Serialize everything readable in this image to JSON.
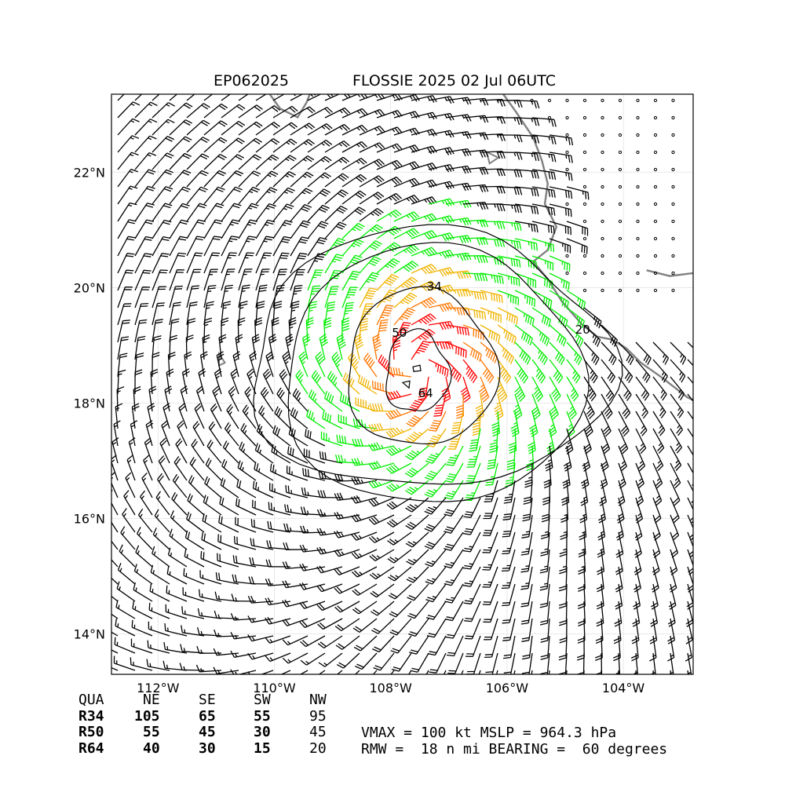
{
  "header": {
    "storm_id": "EP062025",
    "storm_title": "FLOSSIE 2025 02 Jul 06UTC"
  },
  "chart_data": {
    "type": "wind_barb_map",
    "title_left": "EP062025",
    "title_right": "FLOSSIE 2025 02 Jul 06UTC",
    "x_ticks": [
      "112°W",
      "110°W",
      "108°W",
      "106°W",
      "104°W"
    ],
    "x_tick_values": [
      -112,
      -110,
      -108,
      -106,
      -104
    ],
    "y_ticks": [
      "14°N",
      "16°N",
      "18°N",
      "20°N",
      "22°N"
    ],
    "y_tick_values": [
      14,
      16,
      18,
      20,
      22
    ],
    "xlim": [
      -112.8,
      -102.8
    ],
    "ylim": [
      13.3,
      23.35
    ],
    "grid": true,
    "center": {
      "lon": -107.55,
      "lat": 18.6
    },
    "contours": [
      {
        "label": "20",
        "label_lon": -104.7,
        "label_lat": 19.2
      },
      {
        "label": "34",
        "label_lon": -107.25,
        "label_lat": 19.95
      },
      {
        "label": "50",
        "label_lon": -107.85,
        "label_lat": 19.15
      },
      {
        "label": "64",
        "label_lon": -107.4,
        "label_lat": 18.1
      }
    ],
    "barb_colors": {
      "below_20kt": "#000000",
      "r34": "#00ee00",
      "r50": "#f0b400",
      "r64_outer": "#ff7700",
      "r64_core": "#ff0000",
      "coastline": "#808080"
    }
  },
  "radii_table": {
    "headers": [
      "QUA",
      "NE",
      "SE",
      "SW",
      "NW"
    ],
    "rows": [
      {
        "label": "R34",
        "values": [
          "105",
          "65",
          "55",
          "95"
        ]
      },
      {
        "label": "R50",
        "values": [
          "55",
          "45",
          "30",
          "45"
        ]
      },
      {
        "label": "R64",
        "values": [
          "40",
          "30",
          "15",
          "20"
        ]
      }
    ]
  },
  "info": {
    "line1": "VMAX = 100 kt MSLP = 964.3 hPa",
    "line2": "RMW =  18 n mi BEARING =  60 degrees"
  }
}
